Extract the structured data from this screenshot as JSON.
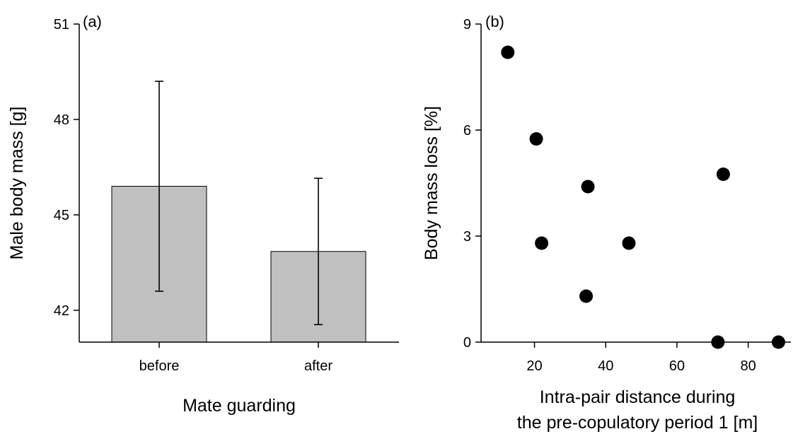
{
  "chart_data": [
    {
      "panel_label": "(a)",
      "type": "bar",
      "categories": [
        "before",
        "after"
      ],
      "values": [
        45.9,
        43.85
      ],
      "error_low": [
        42.6,
        41.55
      ],
      "error_high": [
        49.2,
        46.15
      ],
      "xlabel": "Mate guarding",
      "ylabel": "Male body mass [g]",
      "ylim": [
        41.0,
        51.0
      ],
      "yticks": [
        42,
        45,
        48,
        51
      ],
      "bar_color": "#c0c0c0",
      "grid": false
    },
    {
      "panel_label": "(b)",
      "type": "scatter",
      "points": [
        {
          "x": 12.5,
          "y": 8.2
        },
        {
          "x": 20.5,
          "y": 5.75
        },
        {
          "x": 22.0,
          "y": 2.8
        },
        {
          "x": 34.5,
          "y": 1.3
        },
        {
          "x": 35.0,
          "y": 4.4
        },
        {
          "x": 46.5,
          "y": 2.8
        },
        {
          "x": 71.5,
          "y": 0.0
        },
        {
          "x": 73.0,
          "y": 4.75
        },
        {
          "x": 88.5,
          "y": 0.0
        }
      ],
      "xlabel_line1": "Intra-pair distance during",
      "xlabel_line2": "the pre-copulatory period 1 [m]",
      "ylabel": "Body mass loss [%]",
      "xlim": [
        5,
        92
      ],
      "ylim": [
        0,
        9
      ],
      "xticks": [
        20,
        40,
        60,
        80
      ],
      "yticks": [
        0,
        3,
        6,
        9
      ],
      "marker_color": "#000000",
      "grid": false
    }
  ]
}
